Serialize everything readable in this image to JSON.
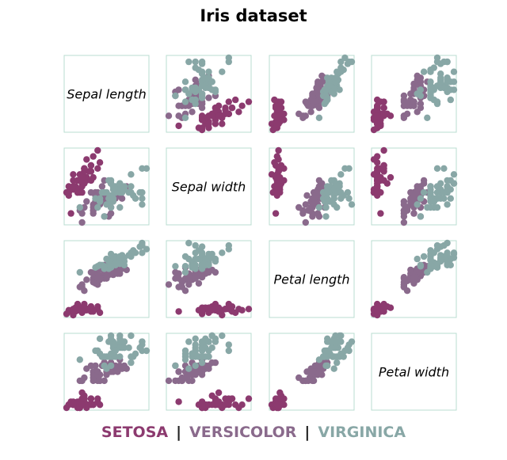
{
  "chart_data": {
    "type": "scatter",
    "title": "Iris dataset",
    "variables": [
      "Sepal length",
      "Sepal width",
      "Petal length",
      "Petal width"
    ],
    "grid": false,
    "legend_placement": "bottom-center",
    "species": [
      {
        "name": "SETOSA",
        "color": "#8c3a6f",
        "points": [
          [
            5.1,
            3.5,
            1.4,
            0.2
          ],
          [
            4.9,
            3.0,
            1.4,
            0.2
          ],
          [
            4.7,
            3.2,
            1.3,
            0.2
          ],
          [
            4.6,
            3.1,
            1.5,
            0.2
          ],
          [
            5.0,
            3.6,
            1.4,
            0.2
          ],
          [
            5.4,
            3.9,
            1.7,
            0.4
          ],
          [
            4.6,
            3.4,
            1.4,
            0.3
          ],
          [
            5.0,
            3.4,
            1.5,
            0.2
          ],
          [
            4.4,
            2.9,
            1.4,
            0.2
          ],
          [
            4.9,
            3.1,
            1.5,
            0.1
          ],
          [
            5.4,
            3.7,
            1.5,
            0.2
          ],
          [
            4.8,
            3.4,
            1.6,
            0.2
          ],
          [
            4.8,
            3.0,
            1.4,
            0.1
          ],
          [
            4.3,
            3.0,
            1.1,
            0.1
          ],
          [
            5.8,
            4.0,
            1.2,
            0.2
          ],
          [
            5.7,
            4.4,
            1.5,
            0.4
          ],
          [
            5.4,
            3.9,
            1.3,
            0.4
          ],
          [
            5.1,
            3.5,
            1.4,
            0.3
          ],
          [
            5.7,
            3.8,
            1.7,
            0.3
          ],
          [
            5.1,
            3.8,
            1.5,
            0.3
          ],
          [
            5.4,
            3.4,
            1.7,
            0.2
          ],
          [
            5.1,
            3.7,
            1.5,
            0.4
          ],
          [
            4.6,
            3.6,
            1.0,
            0.2
          ],
          [
            5.1,
            3.3,
            1.7,
            0.5
          ],
          [
            4.8,
            3.4,
            1.9,
            0.2
          ],
          [
            5.0,
            3.0,
            1.6,
            0.2
          ],
          [
            5.0,
            3.4,
            1.6,
            0.4
          ],
          [
            5.2,
            3.5,
            1.5,
            0.2
          ],
          [
            5.2,
            3.4,
            1.4,
            0.2
          ],
          [
            4.7,
            3.2,
            1.6,
            0.2
          ],
          [
            4.8,
            3.1,
            1.6,
            0.2
          ],
          [
            5.4,
            3.4,
            1.5,
            0.4
          ],
          [
            5.2,
            4.1,
            1.5,
            0.1
          ],
          [
            5.5,
            4.2,
            1.4,
            0.2
          ],
          [
            4.9,
            3.1,
            1.5,
            0.2
          ],
          [
            5.0,
            3.2,
            1.2,
            0.2
          ],
          [
            5.5,
            3.5,
            1.3,
            0.2
          ],
          [
            4.9,
            3.6,
            1.4,
            0.1
          ],
          [
            4.4,
            3.0,
            1.3,
            0.2
          ],
          [
            5.1,
            3.4,
            1.5,
            0.2
          ],
          [
            5.0,
            3.5,
            1.3,
            0.3
          ],
          [
            4.5,
            2.3,
            1.3,
            0.3
          ],
          [
            4.4,
            3.2,
            1.3,
            0.2
          ],
          [
            5.0,
            3.5,
            1.6,
            0.6
          ],
          [
            5.1,
            3.8,
            1.9,
            0.4
          ],
          [
            4.8,
            3.0,
            1.4,
            0.3
          ],
          [
            5.1,
            3.8,
            1.6,
            0.2
          ],
          [
            4.6,
            3.2,
            1.4,
            0.2
          ],
          [
            5.3,
            3.7,
            1.5,
            0.2
          ],
          [
            5.0,
            3.3,
            1.4,
            0.2
          ]
        ]
      },
      {
        "name": "VERSICOLOR",
        "color": "#8a6a8c",
        "points": [
          [
            7.0,
            3.2,
            4.7,
            1.4
          ],
          [
            6.4,
            3.2,
            4.5,
            1.5
          ],
          [
            6.9,
            3.1,
            4.9,
            1.5
          ],
          [
            5.5,
            2.3,
            4.0,
            1.3
          ],
          [
            6.5,
            2.8,
            4.6,
            1.5
          ],
          [
            5.7,
            2.8,
            4.5,
            1.3
          ],
          [
            6.3,
            3.3,
            4.7,
            1.6
          ],
          [
            4.9,
            2.4,
            3.3,
            1.0
          ],
          [
            6.6,
            2.9,
            4.6,
            1.3
          ],
          [
            5.2,
            2.7,
            3.9,
            1.4
          ],
          [
            5.0,
            2.0,
            3.5,
            1.0
          ],
          [
            5.9,
            3.0,
            4.2,
            1.5
          ],
          [
            6.0,
            2.2,
            4.0,
            1.0
          ],
          [
            6.1,
            2.9,
            4.7,
            1.4
          ],
          [
            5.6,
            2.9,
            3.6,
            1.3
          ],
          [
            6.7,
            3.1,
            4.4,
            1.4
          ],
          [
            5.6,
            3.0,
            4.5,
            1.5
          ],
          [
            5.8,
            2.7,
            4.1,
            1.0
          ],
          [
            6.2,
            2.2,
            4.5,
            1.5
          ],
          [
            5.6,
            2.5,
            3.9,
            1.1
          ],
          [
            5.9,
            3.2,
            4.8,
            1.8
          ],
          [
            6.1,
            2.8,
            4.0,
            1.3
          ],
          [
            6.3,
            2.5,
            4.9,
            1.5
          ],
          [
            6.1,
            2.8,
            4.7,
            1.2
          ],
          [
            6.4,
            2.9,
            4.3,
            1.3
          ],
          [
            6.6,
            3.0,
            4.4,
            1.4
          ],
          [
            6.8,
            2.8,
            4.8,
            1.4
          ],
          [
            6.7,
            3.0,
            5.0,
            1.7
          ],
          [
            6.0,
            2.9,
            4.5,
            1.5
          ],
          [
            5.7,
            2.6,
            3.5,
            1.0
          ],
          [
            5.5,
            2.4,
            3.8,
            1.1
          ],
          [
            5.5,
            2.4,
            3.7,
            1.0
          ],
          [
            5.8,
            2.7,
            3.9,
            1.2
          ],
          [
            6.0,
            2.7,
            5.1,
            1.6
          ],
          [
            5.4,
            3.0,
            4.5,
            1.5
          ],
          [
            6.0,
            3.4,
            4.5,
            1.6
          ],
          [
            6.7,
            3.1,
            4.7,
            1.5
          ],
          [
            6.3,
            2.3,
            4.4,
            1.3
          ],
          [
            5.6,
            3.0,
            4.1,
            1.3
          ],
          [
            5.5,
            2.5,
            4.0,
            1.3
          ],
          [
            5.5,
            2.6,
            4.4,
            1.2
          ],
          [
            6.1,
            3.0,
            4.6,
            1.4
          ],
          [
            5.8,
            2.6,
            4.0,
            1.2
          ],
          [
            5.0,
            2.3,
            3.3,
            1.0
          ],
          [
            5.6,
            2.7,
            4.2,
            1.3
          ],
          [
            5.7,
            3.0,
            4.2,
            1.2
          ],
          [
            5.7,
            2.9,
            4.2,
            1.3
          ],
          [
            6.2,
            2.9,
            4.3,
            1.3
          ],
          [
            5.1,
            2.5,
            3.0,
            1.1
          ],
          [
            5.7,
            2.8,
            4.1,
            1.3
          ]
        ]
      },
      {
        "name": "VIRGINICA",
        "color": "#88a7a6",
        "points": [
          [
            6.3,
            3.3,
            6.0,
            2.5
          ],
          [
            5.8,
            2.7,
            5.1,
            1.9
          ],
          [
            7.1,
            3.0,
            5.9,
            2.1
          ],
          [
            6.3,
            2.9,
            5.6,
            1.8
          ],
          [
            6.5,
            3.0,
            5.8,
            2.2
          ],
          [
            7.6,
            3.0,
            6.6,
            2.1
          ],
          [
            4.9,
            2.5,
            4.5,
            1.7
          ],
          [
            7.3,
            2.9,
            6.3,
            1.8
          ],
          [
            6.7,
            2.5,
            5.8,
            1.8
          ],
          [
            7.2,
            3.6,
            6.1,
            2.5
          ],
          [
            6.5,
            3.2,
            5.1,
            2.0
          ],
          [
            6.4,
            2.7,
            5.3,
            1.9
          ],
          [
            6.8,
            3.0,
            5.5,
            2.1
          ],
          [
            5.7,
            2.5,
            5.0,
            2.0
          ],
          [
            5.8,
            2.8,
            5.1,
            2.4
          ],
          [
            6.4,
            3.2,
            5.3,
            2.3
          ],
          [
            6.5,
            3.0,
            5.5,
            1.8
          ],
          [
            7.7,
            3.8,
            6.7,
            2.2
          ],
          [
            7.7,
            2.6,
            6.9,
            2.3
          ],
          [
            6.0,
            2.2,
            5.0,
            1.5
          ],
          [
            6.9,
            3.2,
            5.7,
            2.3
          ],
          [
            5.6,
            2.8,
            4.9,
            2.0
          ],
          [
            7.7,
            2.8,
            6.7,
            2.0
          ],
          [
            6.3,
            2.7,
            4.9,
            1.8
          ],
          [
            6.7,
            3.3,
            5.7,
            2.1
          ],
          [
            7.2,
            3.2,
            6.0,
            1.8
          ],
          [
            6.2,
            2.8,
            4.8,
            1.8
          ],
          [
            6.1,
            3.0,
            4.9,
            1.8
          ],
          [
            6.4,
            2.8,
            5.6,
            2.1
          ],
          [
            7.2,
            3.0,
            5.8,
            1.6
          ],
          [
            7.4,
            2.8,
            6.1,
            1.9
          ],
          [
            7.9,
            3.8,
            6.4,
            2.0
          ],
          [
            6.4,
            2.8,
            5.6,
            2.2
          ],
          [
            6.3,
            2.8,
            5.1,
            1.5
          ],
          [
            6.1,
            2.6,
            5.6,
            1.4
          ],
          [
            7.7,
            3.0,
            6.1,
            2.3
          ],
          [
            6.3,
            3.4,
            5.6,
            2.4
          ],
          [
            6.4,
            3.1,
            5.5,
            1.8
          ],
          [
            6.0,
            3.0,
            4.8,
            1.8
          ],
          [
            6.9,
            3.1,
            5.4,
            2.1
          ],
          [
            6.7,
            3.1,
            5.6,
            2.4
          ],
          [
            6.9,
            3.1,
            5.1,
            2.3
          ],
          [
            5.8,
            2.7,
            5.1,
            1.9
          ],
          [
            6.8,
            3.2,
            5.9,
            2.3
          ],
          [
            6.7,
            3.3,
            5.7,
            2.5
          ],
          [
            6.7,
            3.0,
            5.2,
            2.3
          ],
          [
            6.3,
            2.5,
            5.0,
            1.9
          ],
          [
            6.5,
            3.0,
            5.2,
            2.0
          ],
          [
            6.2,
            3.4,
            5.4,
            2.3
          ],
          [
            5.9,
            3.0,
            5.1,
            1.8
          ]
        ]
      }
    ],
    "legend_separator": "|"
  }
}
